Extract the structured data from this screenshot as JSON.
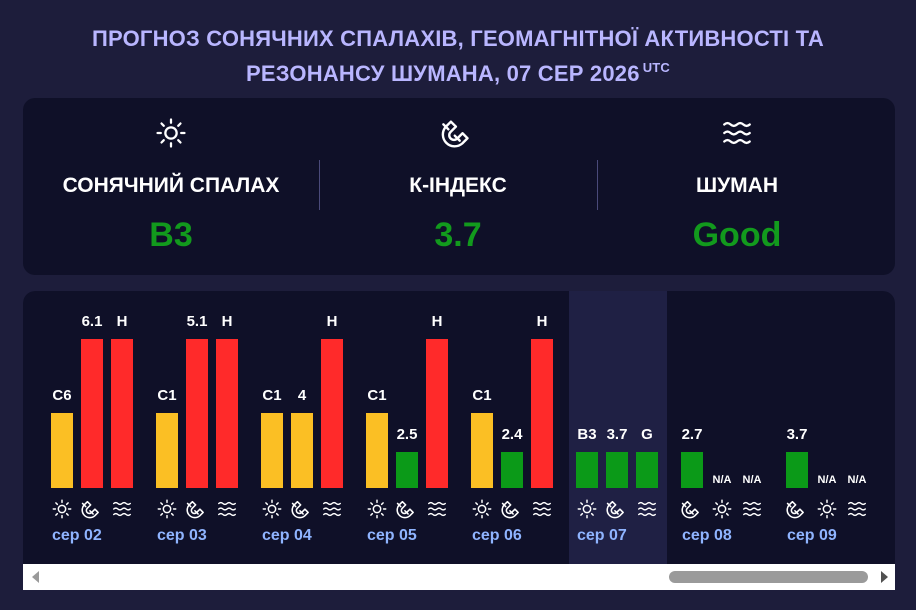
{
  "title": {
    "line1": "ПРОГНОЗ СОНЯЧНИХ СПАЛАХІВ, ГЕОМАГНІТНОЇ АКТИВНОСТІ ТА",
    "line2": "РЕЗОНАНСУ ШУМАНА, 07 СЕР 2026",
    "tz": "UTC"
  },
  "summary": {
    "flare": {
      "label": "СОНЯЧНИЙ СПАЛАХ",
      "value": "B3",
      "icon": "sun-icon"
    },
    "kindex": {
      "label": "К-ІНДЕКС",
      "value": "3.7",
      "icon": "magnet-icon"
    },
    "schumann": {
      "label": "ШУМАН",
      "value": "Good",
      "icon": "waves-icon"
    },
    "value_color": "#129a1d"
  },
  "days": [
    {
      "date": "",
      "flare": {
        "label": "H",
        "level": 1.0,
        "color": "red"
      }
    },
    {
      "date": "сер 02",
      "flare": {
        "label": "C6",
        "level": 0.5,
        "color": "yellow"
      },
      "kindex": {
        "label": "6.1",
        "level": 1.0,
        "color": "red"
      },
      "schumann": {
        "label": "H",
        "level": 1.0,
        "color": "red"
      }
    },
    {
      "date": "сер 03",
      "flare": {
        "label": "C1",
        "level": 0.5,
        "color": "yellow"
      },
      "kindex": {
        "label": "5.1",
        "level": 1.0,
        "color": "red"
      },
      "schumann": {
        "label": "H",
        "level": 1.0,
        "color": "red"
      }
    },
    {
      "date": "сер 04",
      "flare": {
        "label": "C1",
        "level": 0.5,
        "color": "yellow"
      },
      "kindex": {
        "label": "4",
        "level": 0.5,
        "color": "yellow"
      },
      "schumann": {
        "label": "H",
        "level": 1.0,
        "color": "red"
      }
    },
    {
      "date": "сер 05",
      "flare": {
        "label": "C1",
        "level": 0.5,
        "color": "yellow"
      },
      "kindex": {
        "label": "2.5",
        "level": 0.24,
        "color": "green"
      },
      "schumann": {
        "label": "H",
        "level": 1.0,
        "color": "red"
      }
    },
    {
      "date": "сер 06",
      "flare": {
        "label": "C1",
        "level": 0.5,
        "color": "yellow"
      },
      "kindex": {
        "label": "2.4",
        "level": 0.24,
        "color": "green"
      },
      "schumann": {
        "label": "H",
        "level": 1.0,
        "color": "red"
      }
    },
    {
      "date": "сер 07",
      "flare": {
        "label": "B3",
        "level": 0.24,
        "color": "green"
      },
      "kindex": {
        "label": "3.7",
        "level": 0.24,
        "color": "green"
      },
      "schumann": {
        "label": "G",
        "level": 0.24,
        "color": "green"
      }
    },
    {
      "date": "сер 08",
      "kindex": {
        "label": "2.7",
        "level": 0.24,
        "color": "green"
      },
      "flare": {
        "label": "N/A"
      },
      "schumann": {
        "label": "N/A"
      }
    },
    {
      "date": "сер 09",
      "kindex": {
        "label": "3.7",
        "level": 0.24,
        "color": "green"
      },
      "flare": {
        "label": "N/A"
      },
      "schumann": {
        "label": "N/A"
      }
    }
  ],
  "colors": {
    "red": "#ff2a2a",
    "yellow": "#fbbf24",
    "green": "#0b9a18",
    "date": "#8fb4ff",
    "title": "#b9b6ff"
  }
}
